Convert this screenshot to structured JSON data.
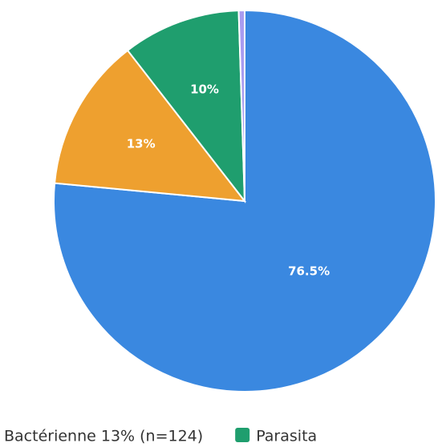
{
  "chart_data": {
    "type": "pie",
    "categories": [
      null,
      "Bactérienne 13% (n=124)",
      "Parasita",
      null
    ],
    "values": [
      76.5,
      13,
      10,
      0.5
    ],
    "value_labels": [
      "76.5%",
      "13%",
      "10%",
      null
    ],
    "colors": [
      "#3a88e0",
      "#eea02f",
      "#1f9e6e",
      "#a99cf0"
    ]
  }
}
